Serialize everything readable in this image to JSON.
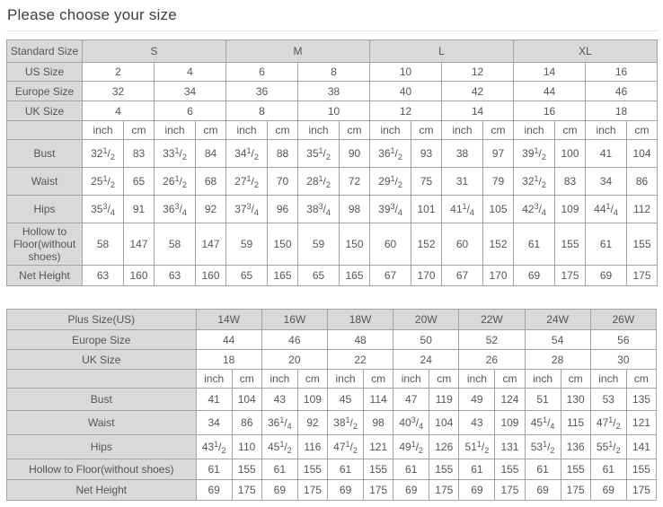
{
  "page": {
    "title": "Please choose your size"
  },
  "colors": {
    "header_bg": "#d9d9d9",
    "border": "#a3a3a3",
    "text": "#555555",
    "divider": "#e2e2e2"
  },
  "standard_table": {
    "label_header": "Standard Size",
    "size_groups": [
      "S",
      "M",
      "L",
      "XL"
    ],
    "size_rows": [
      {
        "label": "US Size",
        "values": [
          "2",
          "4",
          "6",
          "8",
          "10",
          "12",
          "14",
          "16"
        ]
      },
      {
        "label": "Europe Size",
        "values": [
          "32",
          "34",
          "36",
          "38",
          "40",
          "42",
          "44",
          "46"
        ]
      },
      {
        "label": "UK Size",
        "values": [
          "4",
          "6",
          "8",
          "10",
          "12",
          "14",
          "16",
          "18"
        ]
      }
    ],
    "unit_labels": [
      "inch",
      "cm"
    ],
    "measurement_rows": [
      {
        "label": "Bust",
        "values": [
          "32 1/2",
          "83",
          "33 1/2",
          "84",
          "34 1/2",
          "88",
          "35 1/2",
          "90",
          "36 1/2",
          "93",
          "38",
          "97",
          "39 1/2",
          "100",
          "41",
          "104"
        ]
      },
      {
        "label": "Waist",
        "values": [
          "25 1/2",
          "65",
          "26 1/2",
          "68",
          "27 1/2",
          "70",
          "28 1/2",
          "72",
          "29 1/2",
          "75",
          "31",
          "79",
          "32 1/2",
          "83",
          "34",
          "86"
        ]
      },
      {
        "label": "Hips",
        "values": [
          "35 3/4",
          "91",
          "36 3/4",
          "92",
          "37 3/4",
          "96",
          "38 3/4",
          "98",
          "39 3/4",
          "101",
          "41 1/4",
          "105",
          "42 3/4",
          "109",
          "44 1/4",
          "112"
        ]
      },
      {
        "label": "Hollow to Floor(without shoes)",
        "values": [
          "58",
          "147",
          "58",
          "147",
          "59",
          "150",
          "59",
          "150",
          "60",
          "152",
          "60",
          "152",
          "61",
          "155",
          "61",
          "155"
        ]
      },
      {
        "label": "Net Height",
        "values": [
          "63",
          "160",
          "63",
          "160",
          "65",
          "165",
          "65",
          "165",
          "67",
          "170",
          "67",
          "170",
          "69",
          "175",
          "69",
          "175"
        ]
      }
    ]
  },
  "plus_table": {
    "label_header": "Plus Size(US)",
    "size_groups": [
      "14W",
      "16W",
      "18W",
      "20W",
      "22W",
      "24W",
      "26W"
    ],
    "size_rows": [
      {
        "label": "Europe Size",
        "values": [
          "44",
          "46",
          "48",
          "50",
          "52",
          "54",
          "56"
        ]
      },
      {
        "label": "UK Size",
        "values": [
          "18",
          "20",
          "22",
          "24",
          "26",
          "28",
          "30"
        ]
      }
    ],
    "unit_labels": [
      "inch",
      "cm"
    ],
    "measurement_rows": [
      {
        "label": "Bust",
        "values": [
          "41",
          "104",
          "43",
          "109",
          "45",
          "114",
          "47",
          "119",
          "49",
          "124",
          "51",
          "130",
          "53",
          "135"
        ]
      },
      {
        "label": "Waist",
        "values": [
          "34",
          "86",
          "36 1/4",
          "92",
          "38 1/2",
          "98",
          "40 3/4",
          "104",
          "43",
          "109",
          "45 1/4",
          "115",
          "47 1/2",
          "121"
        ]
      },
      {
        "label": "Hips",
        "values": [
          "43 1/2",
          "110",
          "45 1/2",
          "116",
          "47 1/2",
          "121",
          "49 1/2",
          "126",
          "51 1/2",
          "131",
          "53 1/2",
          "136",
          "55 1/2",
          "141"
        ]
      },
      {
        "label": "Hollow to Floor(without shoes)",
        "values": [
          "61",
          "155",
          "61",
          "155",
          "61",
          "155",
          "61",
          "155",
          "61",
          "155",
          "61",
          "155",
          "61",
          "155"
        ]
      },
      {
        "label": "Net Height",
        "values": [
          "69",
          "175",
          "69",
          "175",
          "69",
          "175",
          "69",
          "175",
          "69",
          "175",
          "69",
          "175",
          "69",
          "175"
        ]
      }
    ]
  }
}
